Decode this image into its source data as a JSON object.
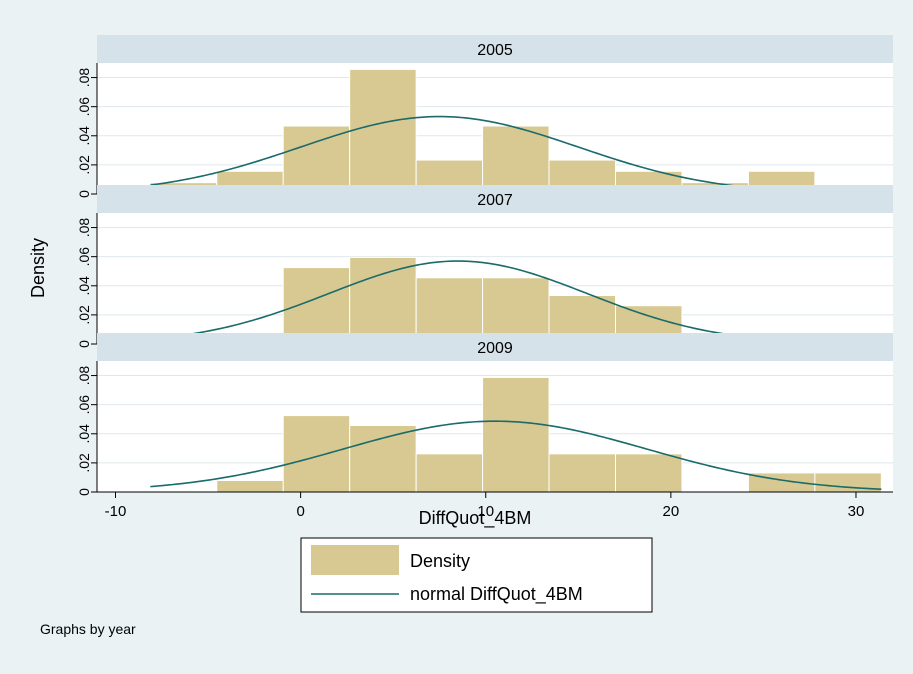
{
  "chart_data": {
    "type": "histogram",
    "xlabel": "DiffQuot_4BM",
    "ylabel": "Density",
    "xlim": [
      -11,
      32
    ],
    "ylim": [
      0,
      0.09
    ],
    "xticks": [
      -10,
      0,
      10,
      20,
      30
    ],
    "xtick_labels": [
      "-10",
      "0",
      "10",
      "20",
      "30"
    ],
    "yticks": [
      0,
      0.02,
      0.04,
      0.06,
      0.08
    ],
    "ytick_labels": [
      "0",
      ".02",
      ".04",
      ".06",
      ".08"
    ],
    "grid": true,
    "bin_edges": [
      -8.12,
      -4.53,
      -0.94,
      2.65,
      6.24,
      9.83,
      13.42,
      17.01,
      20.6,
      24.19,
      27.78,
      31.37
    ],
    "panels": [
      {
        "name": "2005",
        "density": [
          0.0078,
          0.0156,
          0.0467,
          0.0856,
          0.0233,
          0.0467,
          0.0233,
          0.0156,
          0.0078,
          0.0156,
          0
        ],
        "normal_mean": 7.5,
        "normal_sd": 7.5
      },
      {
        "name": "2007",
        "density": [
          0.007,
          0.007,
          0.0525,
          0.0595,
          0.0455,
          0.0455,
          0.0333,
          0.0263,
          0.007,
          0.007,
          0
        ],
        "normal_mean": 8.5,
        "normal_sd": 7.0
      },
      {
        "name": "2009",
        "density": [
          0,
          0.0079,
          0.0525,
          0.0457,
          0.0262,
          0.0787,
          0.0262,
          0.0262,
          0,
          0.0131,
          0.0131
        ],
        "normal_mean": 10.5,
        "normal_sd": 8.2
      }
    ],
    "legend": {
      "position": "bottom",
      "items": [
        "Density",
        "normal DiffQuot_4BM"
      ]
    },
    "note": "Graphs by year"
  },
  "colors": {
    "background": "#eaf2f3",
    "plot_area": "#ffffff",
    "strip": "#d5e2e9",
    "bar_fill": "#d7c991",
    "bar_stroke": "#ffffff",
    "curve": "#1a6b6b",
    "grid": "#dfe8ec"
  }
}
